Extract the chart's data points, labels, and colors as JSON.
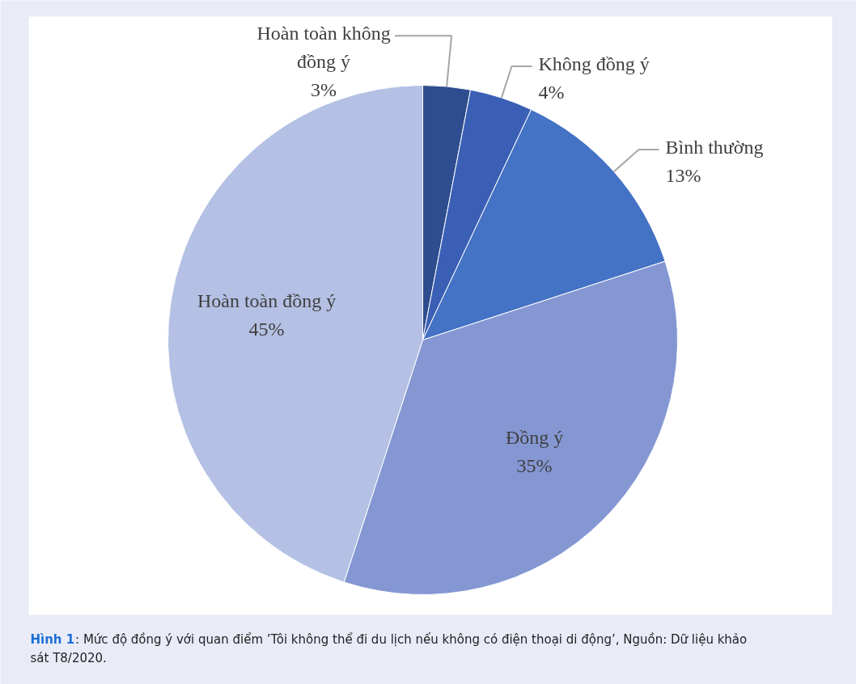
{
  "chart_data": {
    "type": "pie",
    "title": "Hình 1",
    "annotations": [
      ": Mức độ đồng ý với quan điểm ’Tôi không thể đi du lịch nếu không có điện thoại di động’, Nguồn: Dữ liệu khảo sát T8/2020."
    ],
    "categories": [
      "Hoàn toàn không đồng ý",
      "Không đồng ý",
      "Bình thường",
      "Đồng ý",
      "Hoàn toàn đồng ý"
    ],
    "values": [
      3,
      4,
      13,
      35,
      45
    ],
    "value_labels": [
      "3%",
      "4%",
      "13%",
      "35%",
      "45%"
    ],
    "colors": [
      "#2e4d8f",
      "#3a5fb5",
      "#4472c4",
      "#8497d3",
      "#b4c0e4"
    ]
  }
}
